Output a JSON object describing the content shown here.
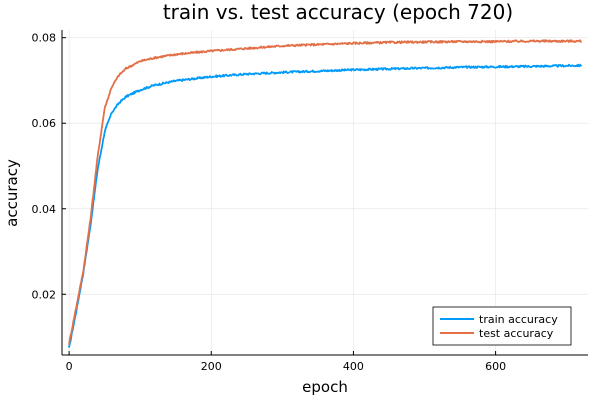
{
  "chart_data": {
    "type": "line",
    "title": "train vs. test accuracy (epoch 720)",
    "xlabel": "epoch",
    "ylabel": "accuracy",
    "xlim": [
      -10,
      730
    ],
    "ylim": [
      0.0058,
      0.0818
    ],
    "xticks": [
      0,
      200,
      400,
      600
    ],
    "yticks": [
      0.02,
      0.04,
      0.06,
      0.08
    ],
    "ytick_labels": [
      "0.02",
      "0.04",
      "0.06",
      "0.08"
    ],
    "grid": true,
    "legend_position": "bottom-right",
    "series": [
      {
        "name": "train accuracy",
        "color": "#009af9",
        "x": [
          0,
          10,
          20,
          30,
          40,
          50,
          60,
          70,
          80,
          100,
          120,
          150,
          200,
          250,
          300,
          350,
          400,
          450,
          500,
          550,
          600,
          650,
          720
        ],
        "y": [
          0.0075,
          0.016,
          0.025,
          0.036,
          0.049,
          0.058,
          0.0625,
          0.0647,
          0.0662,
          0.0678,
          0.0689,
          0.0699,
          0.0709,
          0.0715,
          0.0719,
          0.0722,
          0.0725,
          0.0727,
          0.0729,
          0.0731,
          0.0732,
          0.0733,
          0.0735
        ]
      },
      {
        "name": "test accuracy",
        "color": "#e26f46",
        "x": [
          0,
          10,
          20,
          30,
          40,
          50,
          60,
          70,
          80,
          100,
          120,
          150,
          200,
          250,
          300,
          350,
          400,
          450,
          500,
          550,
          600,
          650,
          720
        ],
        "y": [
          0.0085,
          0.017,
          0.0255,
          0.0375,
          0.052,
          0.0635,
          0.0685,
          0.0712,
          0.0728,
          0.0745,
          0.0753,
          0.0761,
          0.0769,
          0.0775,
          0.0781,
          0.0784,
          0.0787,
          0.0789,
          0.079,
          0.0791,
          0.0791,
          0.0792,
          0.0792
        ]
      }
    ]
  }
}
